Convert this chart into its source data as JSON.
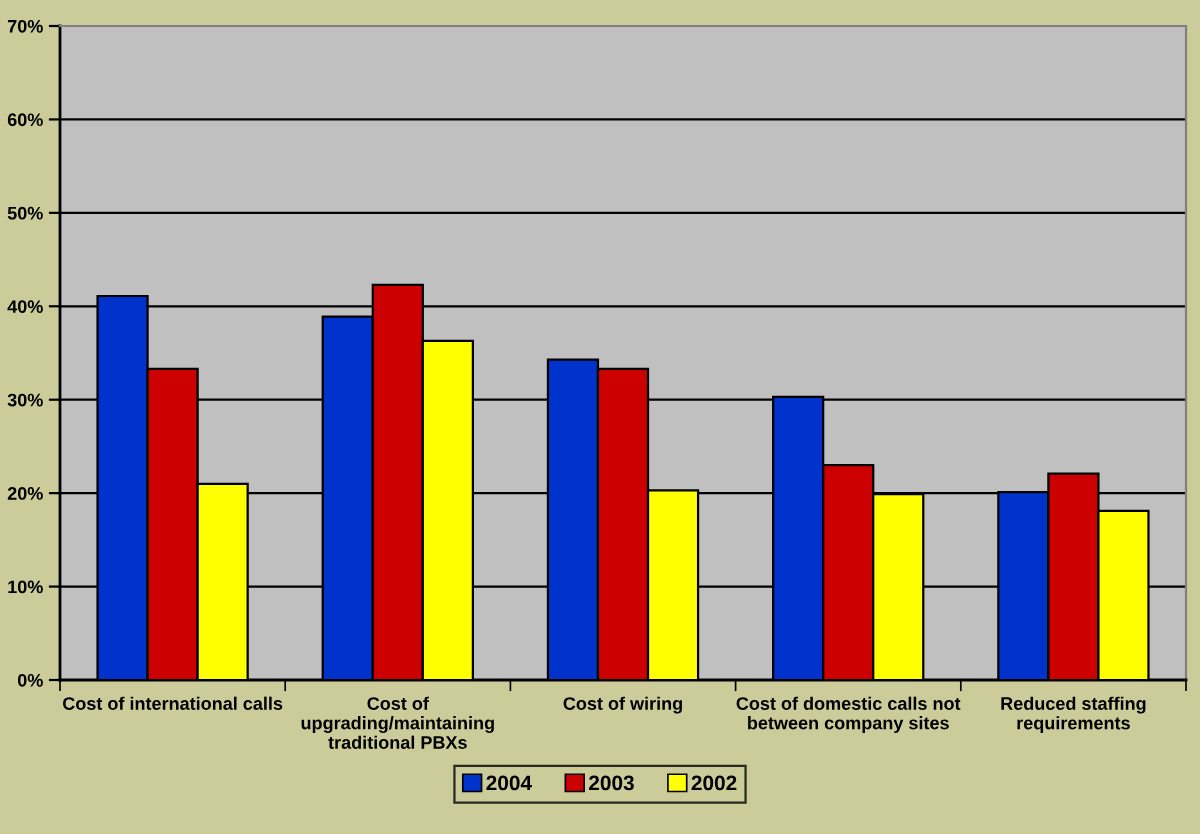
{
  "chart_data": {
    "type": "bar",
    "categories": [
      "Cost of international calls",
      "Cost of\nupgrading/maintaining\ntraditional PBXs",
      "Cost of wiring",
      "Cost of domestic calls not\nbetween company sites",
      "Reduced staffing\nrequirements"
    ],
    "series": [
      {
        "name": "2004",
        "color": "#0033cc",
        "values": [
          41.1,
          38.9,
          34.3,
          30.3,
          20.1
        ]
      },
      {
        "name": "2003",
        "color": "#cc0000",
        "values": [
          33.3,
          42.3,
          33.3,
          23.0,
          22.1
        ]
      },
      {
        "name": "2002",
        "color": "#ffff00",
        "values": [
          21.0,
          36.3,
          20.3,
          19.9,
          18.1
        ]
      }
    ],
    "ylim": [
      0,
      70
    ],
    "yticks": [
      {
        "value": 0,
        "label": "0%"
      },
      {
        "value": 10,
        "label": "10%"
      },
      {
        "value": 20,
        "label": "20%"
      },
      {
        "value": 30,
        "label": "30%"
      },
      {
        "value": 40,
        "label": "40%"
      },
      {
        "value": 50,
        "label": "50%"
      },
      {
        "value": 60,
        "label": "60%"
      },
      {
        "value": 70,
        "label": "70%"
      }
    ],
    "grid": "y",
    "legend": "bottom"
  }
}
